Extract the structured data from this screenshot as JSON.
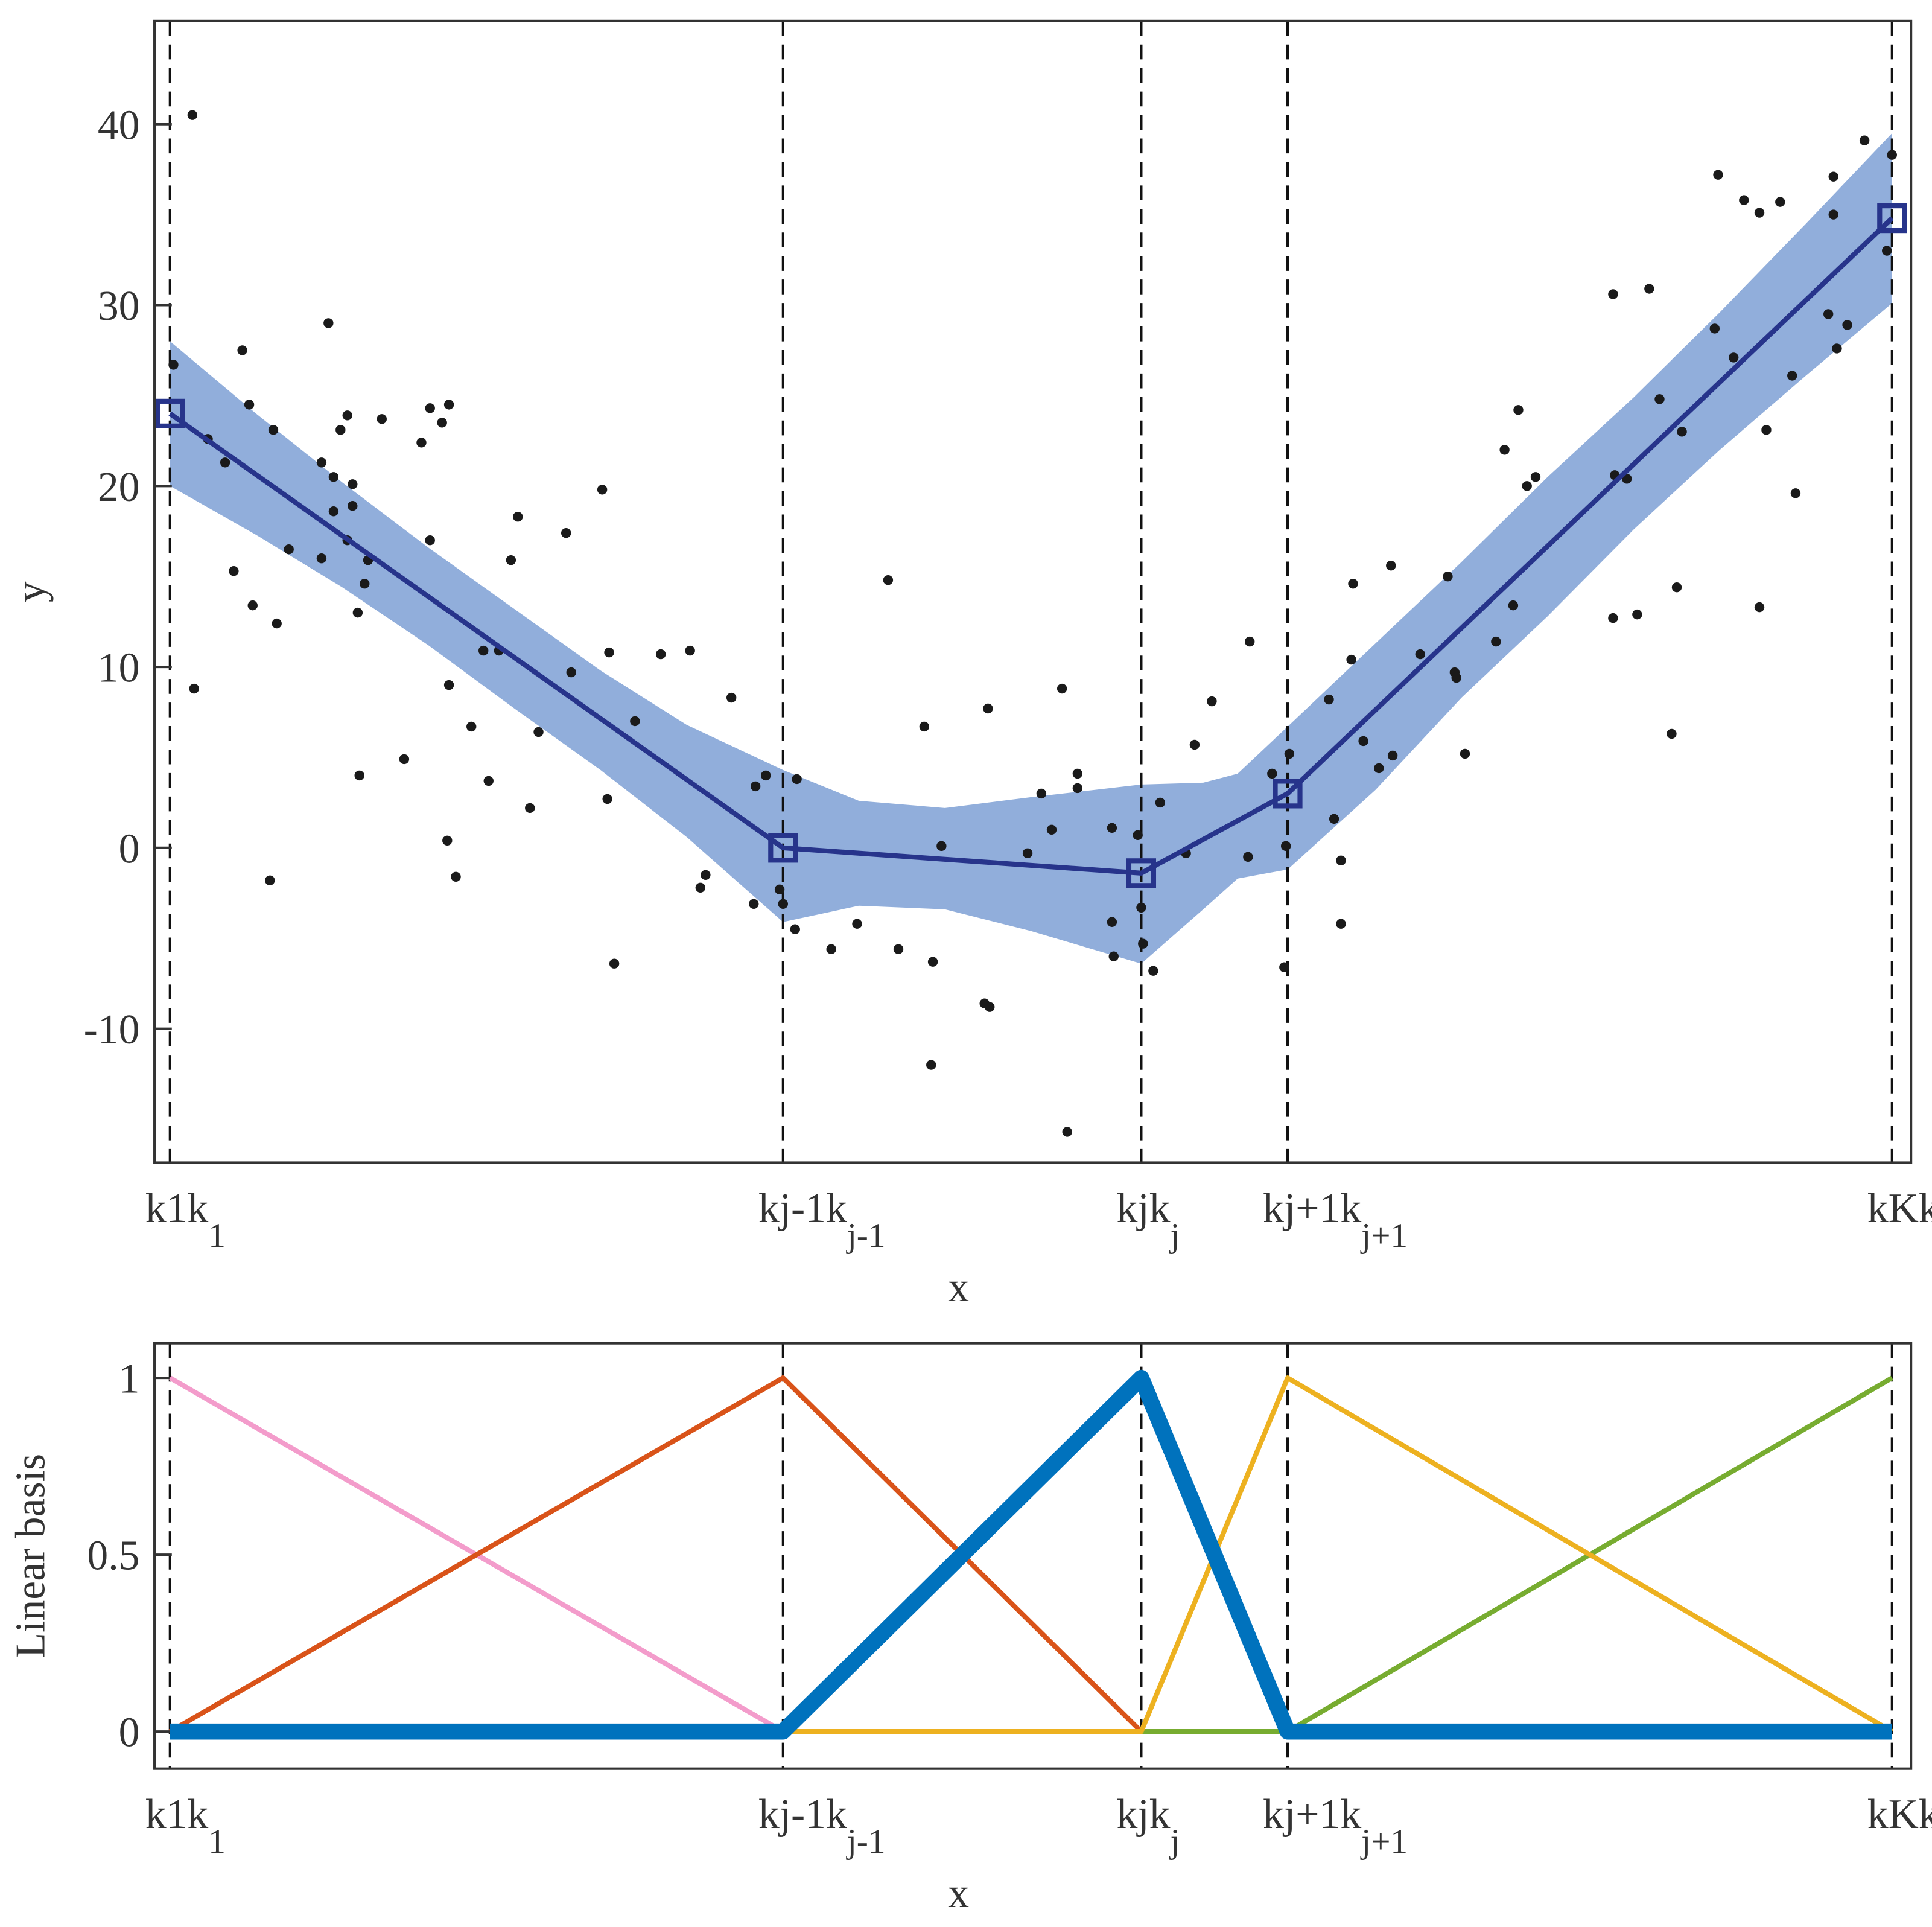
{
  "chart_data": [
    {
      "type": "scatter",
      "xlabel": "x",
      "ylabel": "y",
      "xlim": [
        -0.09,
        10.11
      ],
      "ylim": [
        -17.4,
        45.7
      ],
      "xticks": [
        {
          "value": 0,
          "label": "k1"
        },
        {
          "value": 3.56,
          "label": "kj-1"
        },
        {
          "value": 5.64,
          "label": "kj"
        },
        {
          "value": 6.49,
          "label": "kj+1"
        },
        {
          "value": 10,
          "label": "kK"
        }
      ],
      "yticks": [
        -10,
        0,
        10,
        20,
        30,
        40
      ],
      "knot_lines": true,
      "color": "#1a1a1a",
      "x": [
        0.02,
        0.13,
        0.14,
        0.22,
        0.32,
        0.37,
        0.42,
        0.46,
        0.48,
        0.58,
        0.6,
        0.62,
        0.69,
        0.88,
        0.88,
        0.92,
        0.95,
        0.95,
        0.99,
        1.03,
        1.03,
        1.06,
        1.06,
        1.09,
        1.1,
        1.13,
        1.15,
        1.23,
        1.36,
        1.46,
        1.51,
        1.51,
        1.58,
        1.62,
        1.61,
        1.62,
        1.66,
        1.75,
        1.82,
        1.85,
        1.91,
        1.98,
        2.02,
        2.09,
        2.14,
        2.3,
        2.33,
        2.51,
        2.54,
        2.55,
        2.58,
        2.7,
        2.85,
        3.02,
        3.08,
        3.11,
        3.26,
        3.39,
        3.4,
        3.46,
        3.54,
        3.56,
        3.63,
        3.64,
        3.84,
        3.99,
        4.17,
        4.23,
        4.38,
        4.42,
        4.43,
        4.48,
        4.73,
        4.75,
        4.76,
        4.98,
        5.06,
        5.12,
        5.18,
        5.21,
        5.27,
        5.27,
        5.47,
        5.47,
        5.48,
        5.62,
        5.64,
        5.65,
        5.71,
        5.75,
        5.9,
        5.95,
        6.05,
        6.26,
        6.27,
        6.4,
        6.47,
        6.48,
        6.5,
        6.73,
        6.76,
        6.8,
        6.8,
        6.86,
        6.87,
        6.93,
        7.02,
        7.09,
        7.1,
        7.26,
        7.42,
        7.46,
        7.47,
        7.52,
        7.7,
        7.75,
        7.8,
        7.83,
        7.88,
        7.93,
        8.38,
        8.38,
        8.39,
        8.46,
        8.52,
        8.59,
        8.65,
        8.72,
        8.75,
        8.78,
        8.97,
        8.99,
        9.08,
        9.14,
        9.23,
        9.23,
        9.27,
        9.35,
        9.42,
        9.44,
        9.63,
        9.66,
        9.66,
        9.68,
        9.74,
        9.84,
        9.97,
        10.0
      ],
      "values": [
        26.7,
        40.5,
        8.8,
        22.6,
        21.3,
        15.3,
        27.5,
        24.5,
        13.4,
        -1.8,
        23.1,
        12.4,
        16.5,
        21.3,
        16.0,
        29.0,
        20.5,
        18.6,
        23.1,
        23.9,
        17.0,
        18.9,
        20.1,
        13.0,
        4.0,
        14.6,
        15.9,
        23.7,
        4.9,
        22.4,
        17.0,
        24.3,
        23.5,
        24.5,
        0.4,
        9.0,
        -1.6,
        6.7,
        10.9,
        3.7,
        10.9,
        15.9,
        18.3,
        2.2,
        6.4,
        17.4,
        9.7,
        19.8,
        2.7,
        10.8,
        -6.4,
        7.0,
        10.7,
        10.9,
        -2.2,
        -1.5,
        8.3,
        -3.1,
        3.4,
        4.0,
        -2.3,
        -3.1,
        -4.5,
        3.8,
        -5.6,
        -4.2,
        14.8,
        -5.6,
        6.7,
        -12.0,
        -6.3,
        0.1,
        -8.6,
        7.7,
        -8.8,
        -0.3,
        3.0,
        1.0,
        8.8,
        -15.7,
        4.1,
        3.3,
        1.1,
        -4.1,
        -6.0,
        0.7,
        -3.3,
        -5.3,
        -6.8,
        2.5,
        -0.3,
        5.7,
        8.1,
        -0.5,
        11.4,
        4.1,
        -6.6,
        0.1,
        5.2,
        8.2,
        1.6,
        -0.7,
        -4.2,
        10.4,
        14.6,
        5.9,
        4.4,
        15.6,
        5.1,
        10.7,
        15.0,
        9.7,
        9.4,
        5.2,
        11.4,
        22.0,
        13.4,
        24.2,
        20.0,
        20.5,
        30.6,
        12.7,
        20.6,
        20.4,
        12.9,
        30.9,
        24.8,
        6.3,
        14.4,
        23.0,
        28.7,
        37.2,
        27.1,
        35.8,
        35.1,
        13.3,
        23.1,
        35.7,
        26.1,
        19.6,
        29.5,
        37.1,
        35.0,
        27.6,
        28.9,
        39.1,
        33.0,
        38.3
      ],
      "fit": {
        "x": [
          0,
          3.56,
          5.64,
          6.49,
          10
        ],
        "values": [
          24,
          0,
          -1.4,
          3,
          34.8
        ],
        "color": "#27348b",
        "marker": "square"
      },
      "band": {
        "color": "#91aedb",
        "x": [
          0,
          0.5,
          1,
          1.5,
          2,
          2.5,
          3,
          3.56,
          4,
          4.5,
          5,
          5.64,
          6,
          6.2,
          6.49,
          7,
          7.5,
          8,
          8.5,
          9,
          9.5,
          10
        ],
        "upper": [
          28,
          24.0,
          20.2,
          16.6,
          13.2,
          9.8,
          6.8,
          4.3,
          2.6,
          2.2,
          2.8,
          3.5,
          3.6,
          4.1,
          6.7,
          11.3,
          15.8,
          20.5,
          24.9,
          29.6,
          34.5,
          39.5
        ],
        "lower": [
          20,
          17.3,
          14.4,
          11.2,
          7.7,
          4.3,
          0.6,
          -4.1,
          -3.2,
          -3.4,
          -4.6,
          -6.4,
          -3.4,
          -1.7,
          -1.2,
          3.2,
          8.3,
          12.8,
          17.6,
          22.0,
          26.1,
          30.1
        ]
      }
    },
    {
      "type": "line",
      "xlabel": "x",
      "ylabel": "Linear basis",
      "xlim": [
        -0.09,
        10.11
      ],
      "ylim": [
        -0.105,
        1.098
      ],
      "xticks": [
        {
          "value": 0,
          "label": "k1"
        },
        {
          "value": 3.56,
          "label": "kj-1"
        },
        {
          "value": 5.64,
          "label": "kj"
        },
        {
          "value": 6.49,
          "label": "kj+1"
        },
        {
          "value": 10,
          "label": "kK"
        }
      ],
      "yticks": [
        0,
        0.5,
        1
      ],
      "knot_lines": true,
      "x": [
        0,
        3.56,
        5.64,
        6.49,
        10
      ],
      "series": [
        {
          "color": "#f39ccb",
          "linewidth": 4,
          "values": [
            1,
            0,
            0,
            0,
            0
          ]
        },
        {
          "color": "#d95319",
          "linewidth": 4,
          "values": [
            0,
            1,
            0,
            0,
            0
          ]
        },
        {
          "color": "#77ac30",
          "linewidth": 4,
          "values": [
            0,
            0,
            0,
            0,
            1
          ]
        },
        {
          "color": "#edb120",
          "linewidth": 4,
          "values": [
            0,
            0,
            0,
            1,
            0
          ]
        },
        {
          "color": "#0072bd",
          "linewidth": 13,
          "values": [
            0,
            0,
            1,
            0,
            0
          ]
        }
      ]
    }
  ]
}
